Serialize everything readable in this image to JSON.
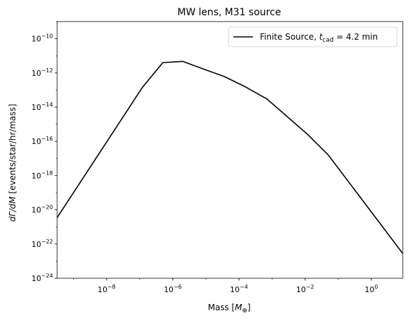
{
  "chart_data": {
    "type": "line",
    "title": "MW lens, M31 source",
    "xlabel": "Mass [M⊕]",
    "ylabel": "dΓ/dM [events/star/hr/mass]",
    "xscale": "log",
    "yscale": "log",
    "xlim": [
      3.2e-10,
      8.9
    ],
    "ylim": [
      1e-24,
      1e-09
    ],
    "grid": false,
    "legend_position": "top-right",
    "x_tick_labels": [
      {
        "value": 1e-08,
        "base": "10",
        "exp": "−8"
      },
      {
        "value": 1e-06,
        "base": "10",
        "exp": "−6"
      },
      {
        "value": 0.0001,
        "base": "10",
        "exp": "−4"
      },
      {
        "value": 0.01,
        "base": "10",
        "exp": "−2"
      },
      {
        "value": 1,
        "base": "10",
        "exp": "0"
      }
    ],
    "y_tick_labels": [
      {
        "value": 1e-24,
        "base": "10",
        "exp": "−24"
      },
      {
        "value": 1e-22,
        "base": "10",
        "exp": "−22"
      },
      {
        "value": 1e-20,
        "base": "10",
        "exp": "−20"
      },
      {
        "value": 1e-18,
        "base": "10",
        "exp": "−18"
      },
      {
        "value": 1e-16,
        "base": "10",
        "exp": "−16"
      },
      {
        "value": 1e-14,
        "base": "10",
        "exp": "−14"
      },
      {
        "value": 1e-12,
        "base": "10",
        "exp": "−12"
      },
      {
        "value": 1e-10,
        "base": "10",
        "exp": "−10"
      }
    ],
    "series": [
      {
        "name": "Finite Source, t_cad = 4.2 min",
        "legend_prefix": "Finite Source, ",
        "legend_var": "t",
        "legend_sub": "cad",
        "legend_suffix": " = 4.2 min",
        "color": "#000000",
        "x": [
          3.2e-10,
          1.2e-07,
          5e-07,
          2e-06,
          1e-05,
          3.5e-05,
          0.00015,
          0.0007,
          0.012,
          0.05,
          8.9
        ],
        "y": [
          3.5e-21,
          1.4e-13,
          4e-12,
          4.7e-12,
          1.5e-12,
          6.3e-13,
          1.6e-13,
          3e-14,
          2.5e-16,
          1.6e-17,
          2.8e-23
        ]
      }
    ]
  }
}
